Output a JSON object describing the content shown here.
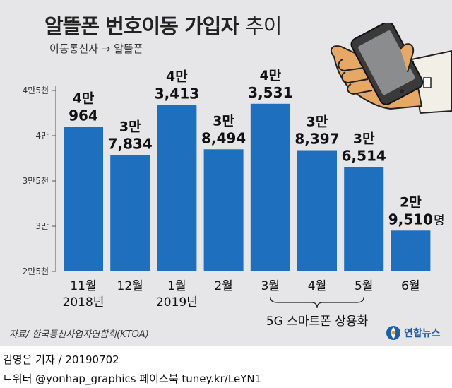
{
  "title": {
    "main": "알뜰폰 번호이동 가입자",
    "suffix": "추이"
  },
  "subtitle": "이동통신사 → 알뜰폰",
  "chart_data": {
    "type": "bar",
    "categories": [
      "11월",
      "12월",
      "1월",
      "2월",
      "3월",
      "4월",
      "5월",
      "6월"
    ],
    "years": [
      {
        "label": "2018년",
        "under": 0
      },
      {
        "label": "2019년",
        "under": 2
      }
    ],
    "values": [
      40964,
      37834,
      43413,
      38494,
      43531,
      38397,
      36514,
      29510
    ],
    "value_labels": [
      {
        "top": "4만",
        "bottom": "964",
        "unit": ""
      },
      {
        "top": "3만",
        "bottom": "7,834",
        "unit": ""
      },
      {
        "top": "4만",
        "bottom": "3,413",
        "unit": ""
      },
      {
        "top": "3만",
        "bottom": "8,494",
        "unit": ""
      },
      {
        "top": "4만",
        "bottom": "3,531",
        "unit": ""
      },
      {
        "top": "3만",
        "bottom": "8,397",
        "unit": ""
      },
      {
        "top": "3만",
        "bottom": "6,514",
        "unit": ""
      },
      {
        "top": "2만",
        "bottom": "9,510",
        "unit": "명"
      }
    ],
    "ylim": [
      25000,
      45000
    ],
    "yticks": [
      {
        "value": 25000,
        "label": "2만5천"
      },
      {
        "value": 30000,
        "label": "3만"
      },
      {
        "value": 35000,
        "label": "3만5천"
      },
      {
        "value": 40000,
        "label": "4만"
      },
      {
        "value": 45000,
        "label": "4만5천"
      }
    ],
    "annotation": {
      "text": "5G 스마트폰 상용화",
      "from": 4,
      "to": 6
    },
    "bar_color": "#1f6fbf",
    "grid": false
  },
  "source": "자료/ 한국통신사업자연합회(KTOA)",
  "logo": {
    "text": "연합뉴스",
    "color": "#1c5ea8"
  },
  "byline": "김영은 기자 / 20190702",
  "social": "트위터 @yonhap_graphics  페이스북 tuney.kr/LeYN1"
}
